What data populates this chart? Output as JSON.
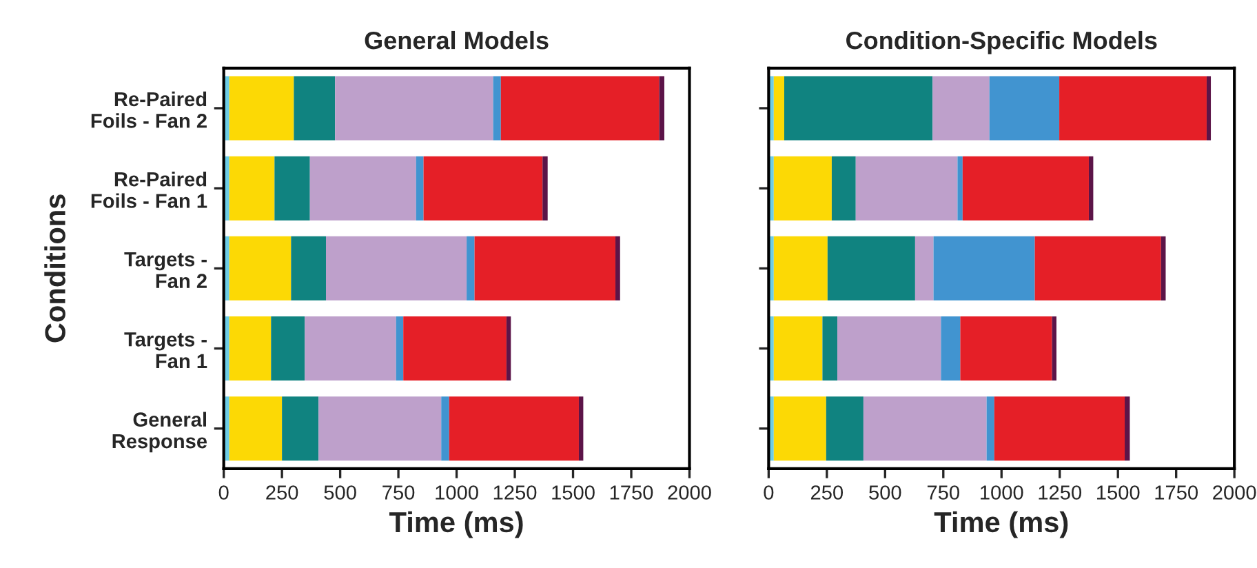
{
  "chart_data": [
    {
      "type": "bar",
      "orientation": "horizontal",
      "stacked": true,
      "title": "General Models",
      "xlabel": "Time (ms)",
      "ylabel": "Conditions",
      "categories": [
        "Re-Paired\nFoils - Fan 2",
        "Re-Paired\nFoils - Fan 1",
        "Targets -\nFan 2",
        "Targets -\nFan 1",
        "General\nResponse"
      ],
      "xlim": [
        0,
        2000
      ],
      "xticks": [
        0,
        250,
        500,
        750,
        1000,
        1250,
        1500,
        1750,
        2000
      ],
      "grid": false,
      "legend": false,
      "series": [
        {
          "color": "#6dcde6",
          "values": [
            24,
            24,
            24,
            24,
            24
          ]
        },
        {
          "color": "#fcd905",
          "values": [
            277,
            194,
            265,
            179,
            226
          ]
        },
        {
          "color": "#108380",
          "values": [
            177,
            152,
            150,
            145,
            157
          ]
        },
        {
          "color": "#bea0cb",
          "values": [
            679,
            456,
            604,
            392,
            527
          ]
        },
        {
          "color": "#4194d0",
          "values": [
            33,
            32,
            34,
            31,
            34
          ]
        },
        {
          "color": "#e51f27",
          "values": [
            680,
            511,
            605,
            443,
            557
          ]
        },
        {
          "color": "#5c1448",
          "values": [
            22,
            22,
            20,
            19,
            19
          ]
        }
      ]
    },
    {
      "type": "bar",
      "orientation": "horizontal",
      "stacked": true,
      "title": "Condition-Specific Models",
      "xlabel": "Time (ms)",
      "categories": [
        null,
        null,
        null,
        null,
        null
      ],
      "tick_labels": "x",
      "xlim": [
        0,
        2000
      ],
      "xticks": [
        0,
        250,
        500,
        750,
        1000,
        1250,
        1500,
        1750,
        2000
      ],
      "grid": false,
      "legend": false,
      "series": [
        {
          "color": "#6dcde6",
          "values": [
            22,
            22,
            22,
            22,
            22
          ]
        },
        {
          "color": "#fcd905",
          "values": [
            45,
            249,
            231,
            209,
            225
          ]
        },
        {
          "color": "#108380",
          "values": [
            637,
            103,
            376,
            64,
            160
          ]
        },
        {
          "color": "#bea0cb",
          "values": [
            244,
            437,
            79,
            445,
            529
          ]
        },
        {
          "color": "#4194d0",
          "values": [
            300,
            22,
            435,
            83,
            33
          ]
        },
        {
          "color": "#e51f27",
          "values": [
            633,
            542,
            542,
            394,
            560
          ]
        },
        {
          "color": "#5c1448",
          "values": [
            18,
            19,
            20,
            19,
            22
          ]
        }
      ]
    }
  ]
}
